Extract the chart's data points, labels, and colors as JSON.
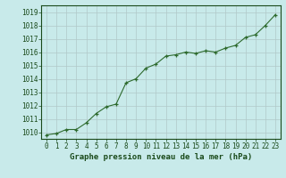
{
  "x": [
    0,
    1,
    2,
    3,
    4,
    5,
    6,
    7,
    8,
    9,
    10,
    11,
    12,
    13,
    14,
    15,
    16,
    17,
    18,
    19,
    20,
    21,
    22,
    23
  ],
  "y": [
    1009.8,
    1009.9,
    1010.2,
    1010.2,
    1010.7,
    1011.4,
    1011.9,
    1012.1,
    1013.7,
    1014.0,
    1014.8,
    1015.1,
    1015.7,
    1015.8,
    1016.0,
    1015.9,
    1016.1,
    1016.0,
    1016.3,
    1016.5,
    1017.1,
    1017.3,
    1018.0,
    1018.8
  ],
  "line_color": "#2d6a2d",
  "marker_color": "#2d6a2d",
  "bg_color": "#c8eaea",
  "grid_color": "#b0c8c8",
  "xlabel": "Graphe pression niveau de la mer (hPa)",
  "xlabel_color": "#1a4a1a",
  "tick_color": "#1a4a1a",
  "ylim": [
    1009.5,
    1019.5
  ],
  "yticks": [
    1010,
    1011,
    1012,
    1013,
    1014,
    1015,
    1016,
    1017,
    1018,
    1019
  ],
  "xlim": [
    -0.5,
    23.5
  ],
  "xticks": [
    0,
    1,
    2,
    3,
    4,
    5,
    6,
    7,
    8,
    9,
    10,
    11,
    12,
    13,
    14,
    15,
    16,
    17,
    18,
    19,
    20,
    21,
    22,
    23
  ],
  "tick_fontsize": 5.5,
  "xlabel_fontsize": 6.5
}
